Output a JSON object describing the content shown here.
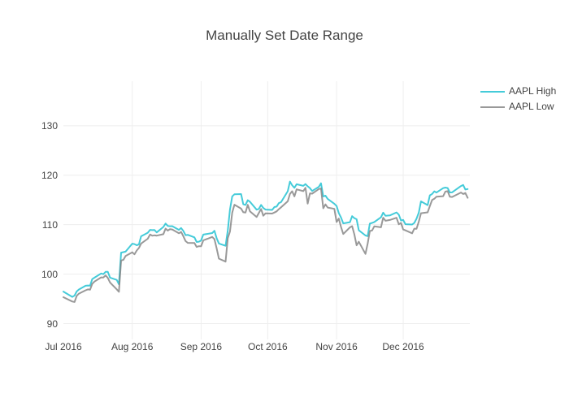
{
  "chart_data": {
    "type": "line",
    "title": "Manually Set Date Range",
    "x": [
      "2016-07-01",
      "2016-07-05",
      "2016-07-06",
      "2016-07-07",
      "2016-07-08",
      "2016-07-11",
      "2016-07-12",
      "2016-07-13",
      "2016-07-14",
      "2016-07-15",
      "2016-07-18",
      "2016-07-19",
      "2016-07-20",
      "2016-07-21",
      "2016-07-22",
      "2016-07-25",
      "2016-07-26",
      "2016-07-27",
      "2016-07-28",
      "2016-07-29",
      "2016-08-01",
      "2016-08-02",
      "2016-08-03",
      "2016-08-04",
      "2016-08-05",
      "2016-08-08",
      "2016-08-09",
      "2016-08-10",
      "2016-08-11",
      "2016-08-12",
      "2016-08-15",
      "2016-08-16",
      "2016-08-17",
      "2016-08-18",
      "2016-08-19",
      "2016-08-22",
      "2016-08-23",
      "2016-08-24",
      "2016-08-25",
      "2016-08-26",
      "2016-08-29",
      "2016-08-30",
      "2016-08-31",
      "2016-09-01",
      "2016-09-02",
      "2016-09-06",
      "2016-09-07",
      "2016-09-08",
      "2016-09-09",
      "2016-09-12",
      "2016-09-13",
      "2016-09-14",
      "2016-09-15",
      "2016-09-16",
      "2016-09-19",
      "2016-09-20",
      "2016-09-21",
      "2016-09-22",
      "2016-09-23",
      "2016-09-26",
      "2016-09-27",
      "2016-09-28",
      "2016-09-29",
      "2016-09-30",
      "2016-10-03",
      "2016-10-04",
      "2016-10-05",
      "2016-10-06",
      "2016-10-07",
      "2016-10-10",
      "2016-10-11",
      "2016-10-12",
      "2016-10-13",
      "2016-10-14",
      "2016-10-17",
      "2016-10-18",
      "2016-10-19",
      "2016-10-20",
      "2016-10-21",
      "2016-10-24",
      "2016-10-25",
      "2016-10-26",
      "2016-10-27",
      "2016-10-28",
      "2016-10-31",
      "2016-11-01",
      "2016-11-02",
      "2016-11-03",
      "2016-11-04",
      "2016-11-07",
      "2016-11-08",
      "2016-11-09",
      "2016-11-10",
      "2016-11-11",
      "2016-11-14",
      "2016-11-15",
      "2016-11-16",
      "2016-11-17",
      "2016-11-18",
      "2016-11-21",
      "2016-11-22",
      "2016-11-23",
      "2016-11-25",
      "2016-11-28",
      "2016-11-29",
      "2016-11-30",
      "2016-12-01",
      "2016-12-02",
      "2016-12-05",
      "2016-12-06",
      "2016-12-07",
      "2016-12-08",
      "2016-12-09",
      "2016-12-12",
      "2016-12-13",
      "2016-12-14",
      "2016-12-15",
      "2016-12-16",
      "2016-12-19",
      "2016-12-20",
      "2016-12-21",
      "2016-12-22",
      "2016-12-23",
      "2016-12-27",
      "2016-12-28",
      "2016-12-29",
      "2016-12-30"
    ],
    "series": [
      {
        "name": "AAPL High",
        "color": "#17BECF",
        "opacity": 0.8,
        "values": [
          96.47,
          95.4,
          95.66,
          96.5,
          96.89,
          97.65,
          97.7,
          97.67,
          98.99,
          99.3,
          100.13,
          100.0,
          100.46,
          100.47,
          99.3,
          98.84,
          97.97,
          104.35,
          104.45,
          104.55,
          106.15,
          106.07,
          105.84,
          106.0,
          107.65,
          108.37,
          108.94,
          108.9,
          108.93,
          108.44,
          109.54,
          110.23,
          109.75,
          109.69,
          109.7,
          108.95,
          109.32,
          108.75,
          107.88,
          107.95,
          107.44,
          106.5,
          106.57,
          106.8,
          108.0,
          108.3,
          108.76,
          107.27,
          106.18,
          105.72,
          108.79,
          113.03,
          115.73,
          116.13,
          116.18,
          114.12,
          113.99,
          114.94,
          114.62,
          113.03,
          113.18,
          113.99,
          113.37,
          113.05,
          112.98,
          113.56,
          113.66,
          114.34,
          114.56,
          116.75,
          118.69,
          117.98,
          117.44,
          118.17,
          117.84,
          118.21,
          117.76,
          117.38,
          116.8,
          117.65,
          118.36,
          115.7,
          115.86,
          115.21,
          114.23,
          113.77,
          112.35,
          111.46,
          110.25,
          110.51,
          111.72,
          111.32,
          111.09,
          108.87,
          107.81,
          107.68,
          110.23,
          110.35,
          110.54,
          111.49,
          112.42,
          111.8,
          111.87,
          112.47,
          112.03,
          110.85,
          110.94,
          110.09,
          110.03,
          110.36,
          111.19,
          112.43,
          114.7,
          113.95,
          115.92,
          116.2,
          116.73,
          116.5,
          117.38,
          117.5,
          117.4,
          116.51,
          116.52,
          117.8,
          118.02,
          117.11,
          117.2
        ]
      },
      {
        "name": "AAPL Low",
        "color": "#7F7F7F",
        "opacity": 0.8,
        "values": [
          95.33,
          94.46,
          94.37,
          95.62,
          96.05,
          96.73,
          96.91,
          96.84,
          98.04,
          98.5,
          99.34,
          99.33,
          99.74,
          99.25,
          98.31,
          96.92,
          96.42,
          102.75,
          102.89,
          103.68,
          104.41,
          104.0,
          104.77,
          105.28,
          106.18,
          107.16,
          108.01,
          107.76,
          107.85,
          107.78,
          108.08,
          109.21,
          108.79,
          109.09,
          109.02,
          108.25,
          108.53,
          107.68,
          106.68,
          106.31,
          106.28,
          105.5,
          105.64,
          105.62,
          106.82,
          107.51,
          107.07,
          105.24,
          103.13,
          102.53,
          107.24,
          108.6,
          112.44,
          114.04,
          113.25,
          112.51,
          112.44,
          114.0,
          112.71,
          111.55,
          112.34,
          113.17,
          111.8,
          112.28,
          112.25,
          112.46,
          112.69,
          113.13,
          113.51,
          114.72,
          116.2,
          116.75,
          115.72,
          117.13,
          116.78,
          117.45,
          114.25,
          116.33,
          116.27,
          117.2,
          117.31,
          113.31,
          114.1,
          113.45,
          113.2,
          110.53,
          111.23,
          109.55,
          108.11,
          109.46,
          109.7,
          108.05,
          105.83,
          106.55,
          104.08,
          106.16,
          108.71,
          108.83,
          109.66,
          109.47,
          111.4,
          110.78,
          110.95,
          111.39,
          110.07,
          110.35,
          109.03,
          108.85,
          108.25,
          109.19,
          109.16,
          110.6,
          112.31,
          112.49,
          113.75,
          114.98,
          115.23,
          115.65,
          115.75,
          116.68,
          116.78,
          115.64,
          115.59,
          116.49,
          116.2,
          116.4,
          115.43
        ]
      }
    ],
    "x_range": [
      "2016-07-01",
      "2016-12-31"
    ],
    "y_range": [
      86.8,
      139.0
    ],
    "x_ticks": [
      {
        "label": "Jul 2016",
        "date": "2016-07-01"
      },
      {
        "label": "Aug 2016",
        "date": "2016-08-01"
      },
      {
        "label": "Sep 2016",
        "date": "2016-09-01"
      },
      {
        "label": "Oct 2016",
        "date": "2016-10-01"
      },
      {
        "label": "Nov 2016",
        "date": "2016-11-01"
      },
      {
        "label": "Dec 2016",
        "date": "2016-12-01"
      }
    ],
    "y_ticks": [
      {
        "label": "90",
        "value": 90
      },
      {
        "label": "100",
        "value": 100
      },
      {
        "label": "110",
        "value": 110
      },
      {
        "label": "120",
        "value": 120
      },
      {
        "label": "130",
        "value": 130
      }
    ],
    "grid": true,
    "grid_color": "#EEEEEE",
    "text_color": "#444444",
    "background": "#FFFFFF",
    "legend_position": "top-right"
  }
}
